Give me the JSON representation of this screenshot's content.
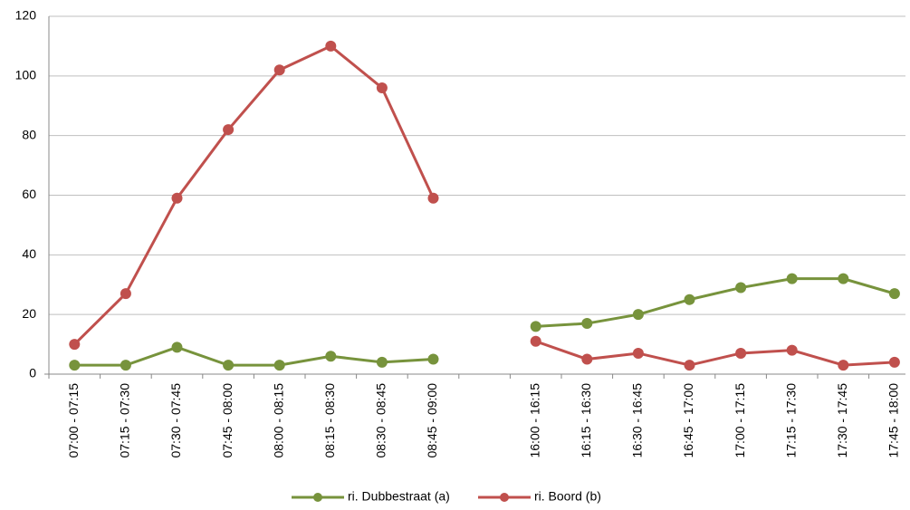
{
  "chart_data": {
    "type": "line",
    "categories": [
      "07:00 - 07:15",
      "07:15 - 07:30",
      "07:30 - 07:45",
      "07:45 - 08:00",
      "08:00 - 08:15",
      "08:15 - 08:30",
      "08:30 - 08:45",
      "08:45 - 09:00",
      null,
      "16:00 - 16:15",
      "16:15 - 16:30",
      "16:30 - 16:45",
      "16:45 - 17:00",
      "17:00 - 17:15",
      "17:15 - 17:30",
      "17:30 - 17:45",
      "17:45 - 18:00"
    ],
    "series": [
      {
        "name": "ri. Dubbestraat (a)",
        "color": "#77933c",
        "values": [
          3,
          3,
          9,
          3,
          3,
          6,
          4,
          5,
          null,
          16,
          17,
          20,
          25,
          29,
          32,
          32,
          27
        ]
      },
      {
        "name": "ri. Boord (b)",
        "color": "#c0504d",
        "values": [
          10,
          27,
          59,
          82,
          102,
          110,
          96,
          59,
          null,
          11,
          5,
          7,
          3,
          7,
          8,
          3,
          4
        ]
      }
    ],
    "ylim": [
      0,
      120
    ],
    "yticks": [
      0,
      20,
      40,
      60,
      80,
      100,
      120
    ],
    "grid": true,
    "legend": "bottom"
  }
}
